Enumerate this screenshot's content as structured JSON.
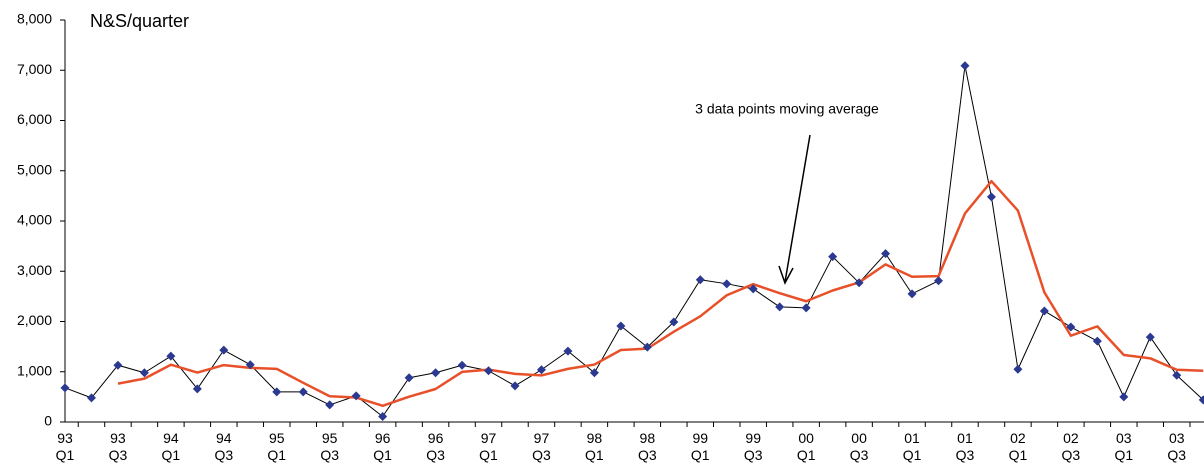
{
  "chart_data": {
    "type": "line",
    "title": "N&S/quarter",
    "annotation": "3 data points moving average",
    "categories": [
      "93\nQ1",
      null,
      "93\nQ3",
      null,
      "94\nQ1",
      null,
      "94\nQ3",
      null,
      "95\nQ1",
      null,
      "95\nQ3",
      null,
      "96\nQ1",
      null,
      "96\nQ3",
      null,
      "97\nQ1",
      null,
      "97\nQ3",
      null,
      "98\nQ1",
      null,
      "98\nQ3",
      null,
      "99\nQ1",
      null,
      "99\nQ3",
      null,
      "00\nQ1",
      null,
      "00\nQ3",
      null,
      "01\nQ1",
      null,
      "01\nQ3",
      null,
      "02\nQ1",
      null,
      "02\nQ3",
      null,
      "03\nQ1",
      null,
      "03\nQ3",
      null
    ],
    "series": [
      {
        "color": "#000000",
        "marker": "diamond",
        "marker_color": "#2b3990",
        "values": [
          680,
          480,
          1130,
          980,
          1310,
          660,
          1430,
          1140,
          600,
          600,
          340,
          520,
          110,
          880,
          980,
          1130,
          1020,
          720,
          1040,
          1410,
          980,
          1910,
          1490,
          1990,
          2830,
          2750,
          2650,
          2290,
          2270,
          3290,
          2770,
          3350,
          2550,
          2810,
          7090,
          4480,
          1050,
          2210,
          1890,
          1610,
          500,
          1690,
          930,
          440
        ]
      },
      {
        "color": "#e8502a",
        "values": [
          null,
          null,
          763,
          863,
          1140,
          983,
          1133,
          1077,
          1057,
          780,
          513,
          487,
          323,
          503,
          657,
          997,
          1043,
          957,
          927,
          1057,
          1143,
          1433,
          1460,
          1797,
          2103,
          2523,
          2743,
          2563,
          2403,
          2617,
          2777,
          3137,
          2890,
          2903,
          4150,
          4793,
          4207,
          2580,
          1717,
          1903,
          1333,
          1267,
          1040,
          1020
        ]
      }
    ],
    "ylim": [
      0,
      8000
    ],
    "yticks": [
      0,
      {
        "value": 1000,
        "label": "1,000"
      },
      {
        "value": 2000,
        "label": "2,000"
      },
      {
        "value": 3000,
        "label": "3,000"
      },
      {
        "value": 4000,
        "label": "4,000"
      },
      {
        "value": 5000,
        "label": "5,000"
      },
      {
        "value": 6000,
        "label": "6,000"
      },
      {
        "value": 7000,
        "label": "7,000"
      },
      {
        "value": 8000,
        "label": "8,000"
      }
    ],
    "grid": false
  }
}
